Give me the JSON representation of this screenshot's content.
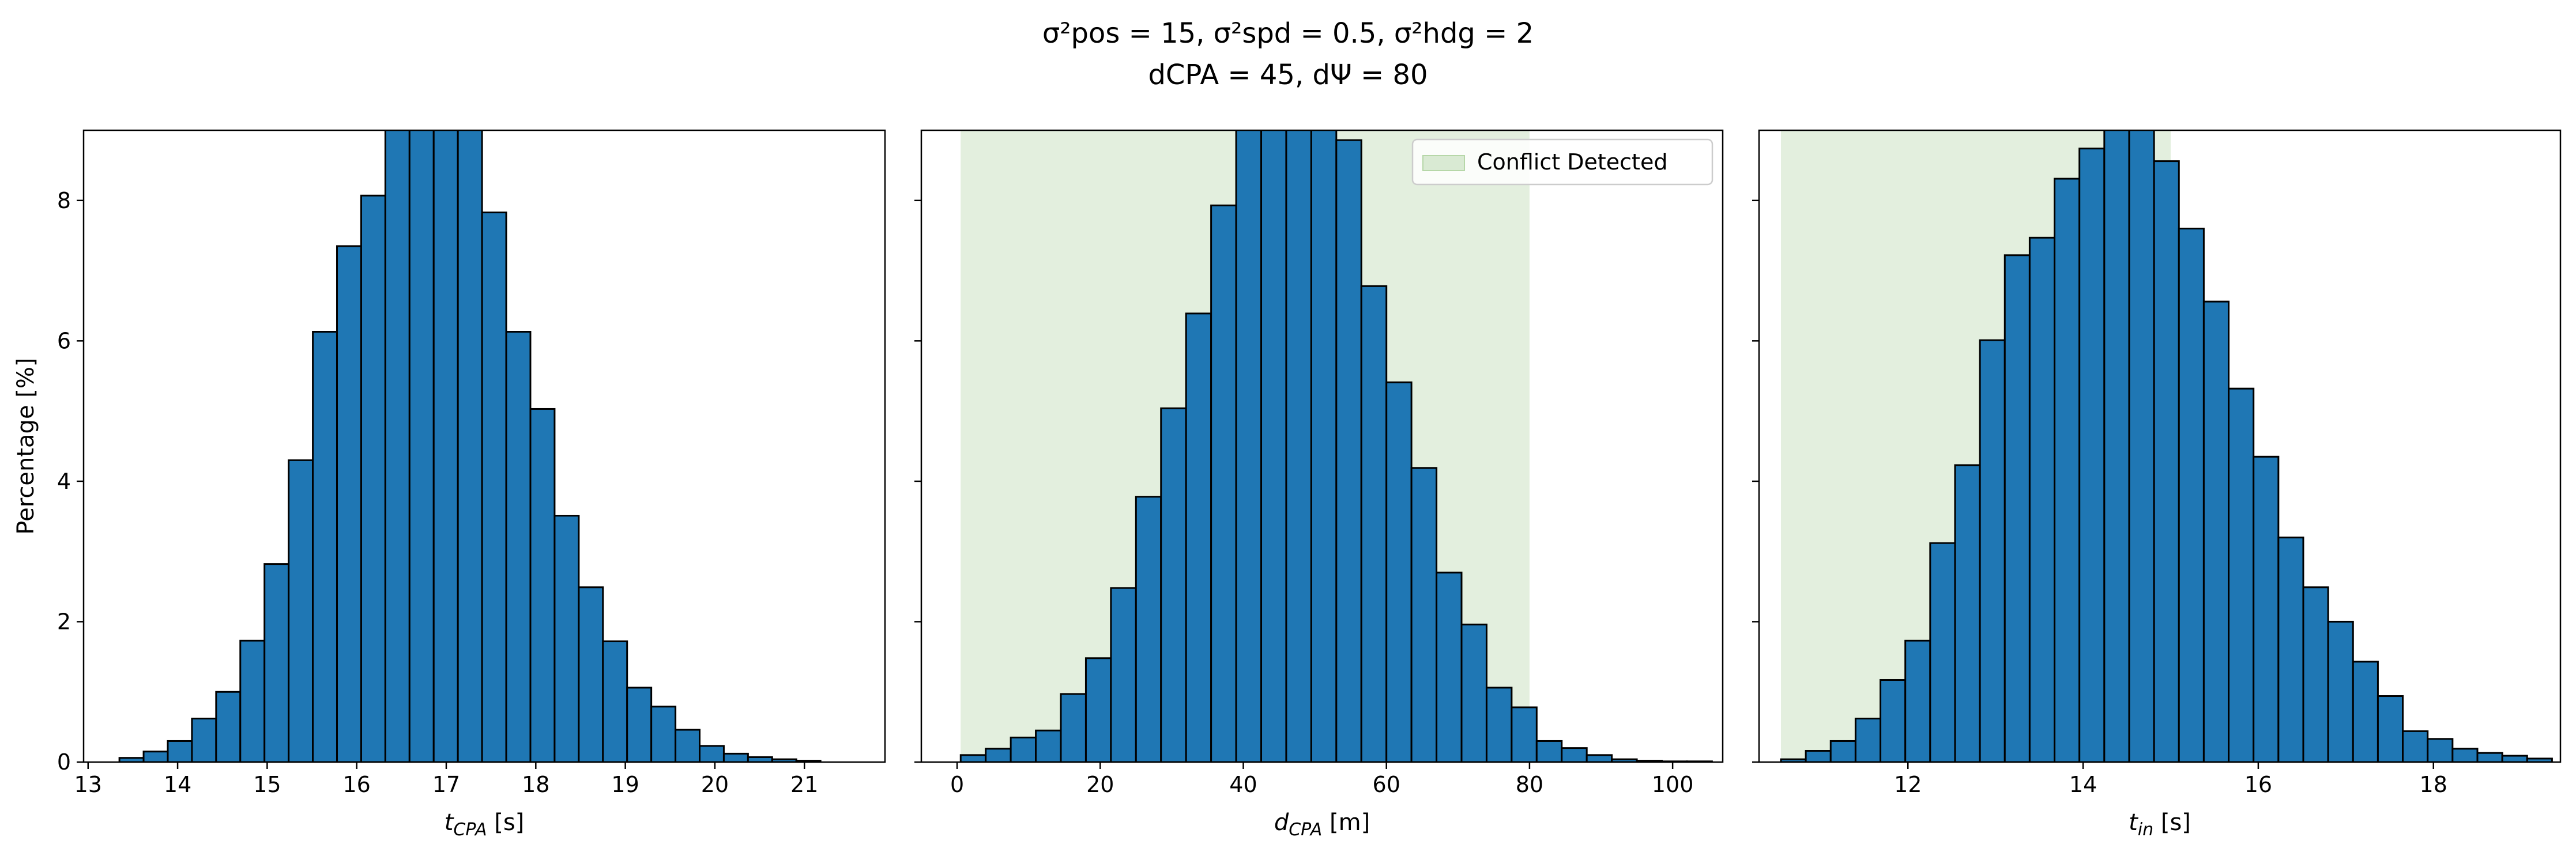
{
  "title_lines": [
    "σ²pos = 15, σ²spd = 0.5, σ²hdg = 2",
    "dCPA = 45, dΨ = 80"
  ],
  "colors": {
    "bar_fill": "#1f77b4",
    "bar_edge": "#000000",
    "conflict_fill": "#d9ead3"
  },
  "chart_data": [
    {
      "type": "bar",
      "xlabel": "t_CPA [s]",
      "ylabel": "Percentage [%]",
      "xlim": [
        12.95,
        21.9
      ],
      "ylim": [
        0,
        9
      ],
      "xticks": [
        13,
        14,
        15,
        16,
        17,
        18,
        19,
        20,
        21
      ],
      "yticks": [
        0,
        2,
        4,
        6,
        8
      ],
      "bin_start": 13.35,
      "bin_width": 0.27,
      "values": [
        0.06,
        0.15,
        0.3,
        0.62,
        1.0,
        1.73,
        2.82,
        4.3,
        6.13,
        7.35,
        8.07,
        9.8,
        10.4,
        10.5,
        9.7,
        7.83,
        6.13,
        5.03,
        3.51,
        2.49,
        1.72,
        1.06,
        0.79,
        0.46,
        0.23,
        0.12,
        0.07,
        0.04,
        0.02
      ],
      "grid": false
    },
    {
      "type": "bar",
      "xlabel": "d_CPA [m]",
      "ylabel": "",
      "xlim": [
        -5,
        107
      ],
      "ylim": [
        0,
        9
      ],
      "xticks": [
        0,
        20,
        40,
        60,
        80,
        100
      ],
      "yticks": [
        0,
        2,
        4,
        6,
        8
      ],
      "bin_start": 0.5,
      "bin_width": 3.5,
      "values": [
        0.1,
        0.19,
        0.35,
        0.45,
        0.97,
        1.48,
        2.48,
        3.78,
        5.04,
        6.39,
        7.93,
        10.5,
        10.8,
        10.7,
        10.3,
        8.86,
        6.78,
        5.41,
        4.19,
        2.7,
        1.96,
        1.06,
        0.78,
        0.3,
        0.2,
        0.1,
        0.04,
        0.02,
        0.01,
        0.01
      ],
      "shaded_region": [
        0.5,
        80.0
      ],
      "legend": {
        "label": "Conflict Detected",
        "position": "upper right"
      },
      "grid": false
    },
    {
      "type": "bar",
      "xlabel": "t_in [s]",
      "ylabel": "",
      "xlim": [
        10.3,
        19.45
      ],
      "ylim": [
        0,
        9
      ],
      "xticks": [
        12,
        14,
        16,
        18
      ],
      "yticks": [
        0,
        2,
        4,
        6,
        8
      ],
      "bin_start": 10.55,
      "bin_width": 0.284,
      "values": [
        0.04,
        0.16,
        0.3,
        0.62,
        1.17,
        1.73,
        3.12,
        4.23,
        6.01,
        7.22,
        7.47,
        8.31,
        8.74,
        9.3,
        9.8,
        8.56,
        7.6,
        6.56,
        5.32,
        4.35,
        3.2,
        2.49,
        2.0,
        1.43,
        0.94,
        0.44,
        0.33,
        0.19,
        0.13,
        0.09,
        0.05
      ],
      "shaded_region": [
        10.55,
        15.0
      ],
      "grid": false
    }
  ]
}
